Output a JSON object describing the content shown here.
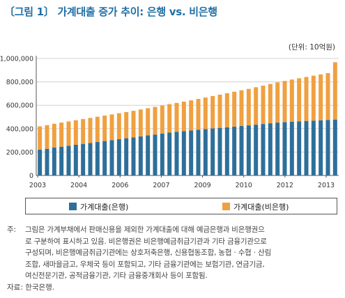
{
  "title": "〔그림 1〕 가계대출 증가 추이: 은행 vs. 비은행",
  "unit_label": "(단위: 10억원)",
  "colors": {
    "bank": "#2e6f9a",
    "nonbank": "#f0a040",
    "title": "#1f6fa5"
  },
  "chart_data": {
    "type": "bar",
    "stacked": true,
    "frequency": "monthly",
    "x_start": "2003-01",
    "x_end": "2013-09",
    "x_tick_labels": [
      "2003",
      "2004",
      "2006",
      "2007",
      "2009",
      "2010",
      "2012",
      "2013"
    ],
    "y_tick_labels": [
      "0",
      "200,000",
      "400,000",
      "600,000",
      "800,000",
      "1,000,000"
    ],
    "ylim": [
      0,
      1000000
    ],
    "grid": "horizontal",
    "legend_position": "bottom",
    "series": [
      {
        "name": "가계대출(은행)",
        "color": "#2e6f9a",
        "values": [
          220000,
          228000,
          238000,
          246000,
          254000,
          262000,
          270000,
          278000,
          286000,
          294000,
          302000,
          310000,
          318000,
          326000,
          334000,
          342000,
          350000,
          358000,
          366000,
          372000,
          378000,
          384000,
          390000,
          396000,
          402000,
          407000,
          412000,
          418000,
          423000,
          428000,
          434000,
          440000,
          446000,
          452000,
          456000,
          460000,
          463000,
          466000,
          469000,
          472000,
          475000,
          478000
        ]
      },
      {
        "name": "가계대출(비은행)",
        "color": "#f0a040",
        "values": [
          200000,
          202000,
          204000,
          206000,
          208000,
          210000,
          212000,
          214000,
          216000,
          218000,
          220000,
          222000,
          224000,
          227000,
          230000,
          233000,
          236000,
          240000,
          244000,
          248000,
          253000,
          258000,
          264000,
          270000,
          277000,
          284000,
          291000,
          298000,
          305000,
          312000,
          320000,
          328000,
          336000,
          344000,
          352000,
          360000,
          368000,
          376000,
          384000,
          392000,
          400000,
          490000
        ]
      }
    ]
  },
  "note": {
    "label": "주:",
    "lines": [
      "그림은 가계부채에서 판매신용을 제외한 가계대출에 대해 예금은행과 비은행권으",
      "로 구분하여 표시하고 있음. 비은행권은 비은행예금취급기관과 기타 금융기관으로",
      "구성되며, 비은행예금취급기관에는 상호저축은행, 신용협동조합, 농협 · 수협 · 산림",
      "조합, 새마을금고, 우체국 등이 포함되고, 기타 금융기관에는 보험기관, 연금기금,",
      "여신전문기관, 공적금융기관, 기타 금융중개회사 등이 포함됨."
    ]
  },
  "source": "자료: 한국은행."
}
